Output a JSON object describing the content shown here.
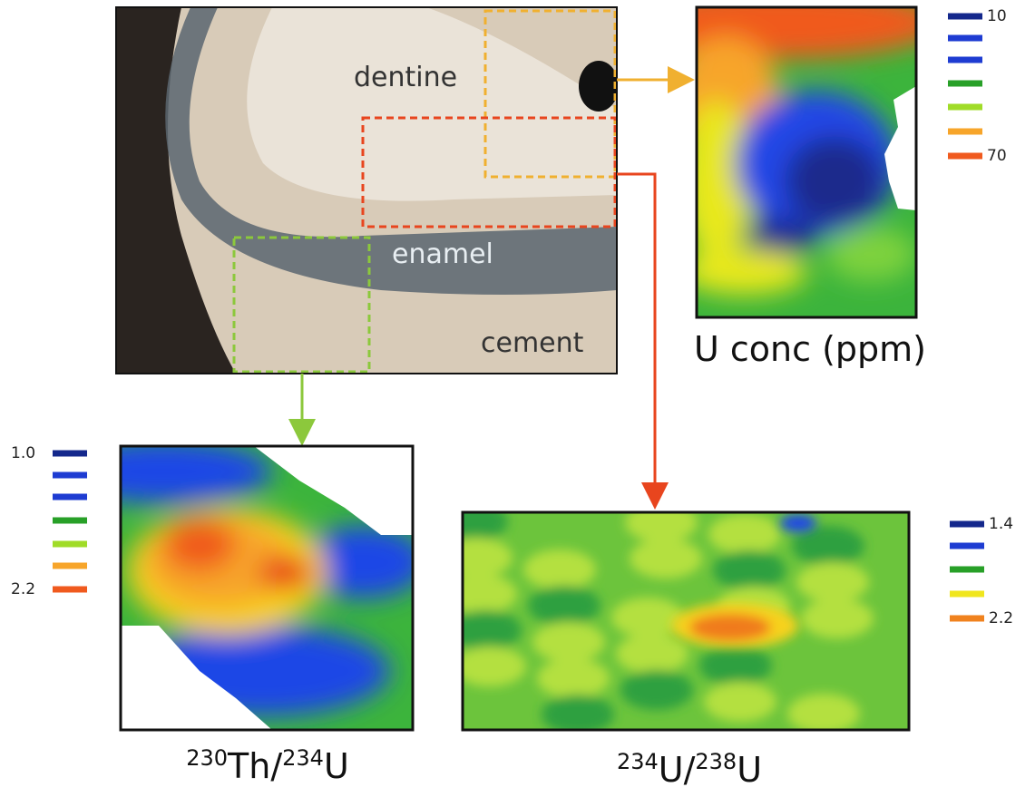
{
  "photo": {
    "labels": [
      "dentine",
      "enamel",
      "cement"
    ]
  },
  "panels": [
    {
      "title": "U conc (ppm)",
      "legend": [
        "10",
        "70"
      ]
    },
    {
      "title": {
        "sup1": "230",
        "base1": "Th/",
        "sup2": "234",
        "base2": "U"
      },
      "legend": [
        "1.0",
        "2.2"
      ]
    },
    {
      "title": {
        "sup1": "234",
        "base1": "U/",
        "sup2": "238",
        "base2": "U"
      },
      "legend": [
        "1.4",
        "2.2"
      ]
    }
  ]
}
